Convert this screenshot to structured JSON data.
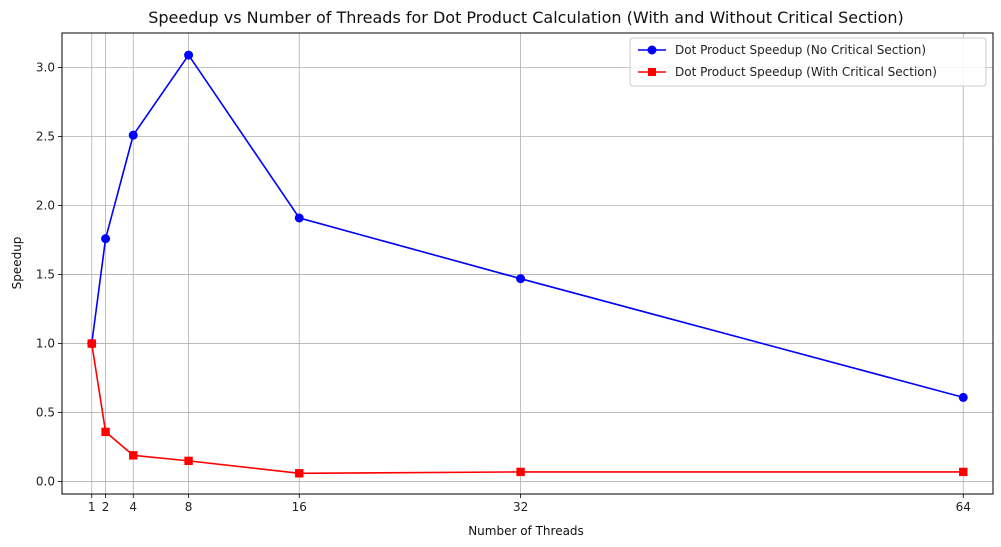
{
  "chart_data": {
    "type": "line",
    "title": "Speedup vs Number of Threads for Dot Product Calculation (With and Without Critical Section)",
    "xlabel": "Number of Threads",
    "ylabel": "Speedup",
    "x": [
      1,
      2,
      4,
      8,
      16,
      32,
      64
    ],
    "x_ticks": [
      1,
      2,
      4,
      8,
      16,
      32,
      64
    ],
    "y_ticks": [
      0.0,
      0.5,
      1.0,
      1.5,
      2.0,
      2.5,
      3.0
    ],
    "y_tick_labels": [
      "0.0",
      "0.5",
      "1.0",
      "1.5",
      "2.0",
      "2.5",
      "3.0"
    ],
    "xlim": [
      -1.15,
      66.15
    ],
    "ylim": [
      -0.09,
      3.25
    ],
    "grid": true,
    "legend_position": "top-right",
    "series": [
      {
        "name": "Dot Product Speedup (No Critical Section)",
        "values": [
          1.0,
          1.76,
          2.51,
          3.09,
          1.91,
          1.47,
          0.61
        ],
        "color": "#0000ff",
        "marker": "circle"
      },
      {
        "name": "Dot Product Speedup (With Critical Section)",
        "values": [
          1.0,
          0.36,
          0.19,
          0.15,
          0.06,
          0.07,
          0.07
        ],
        "color": "#ff0000",
        "marker": "square"
      }
    ]
  }
}
